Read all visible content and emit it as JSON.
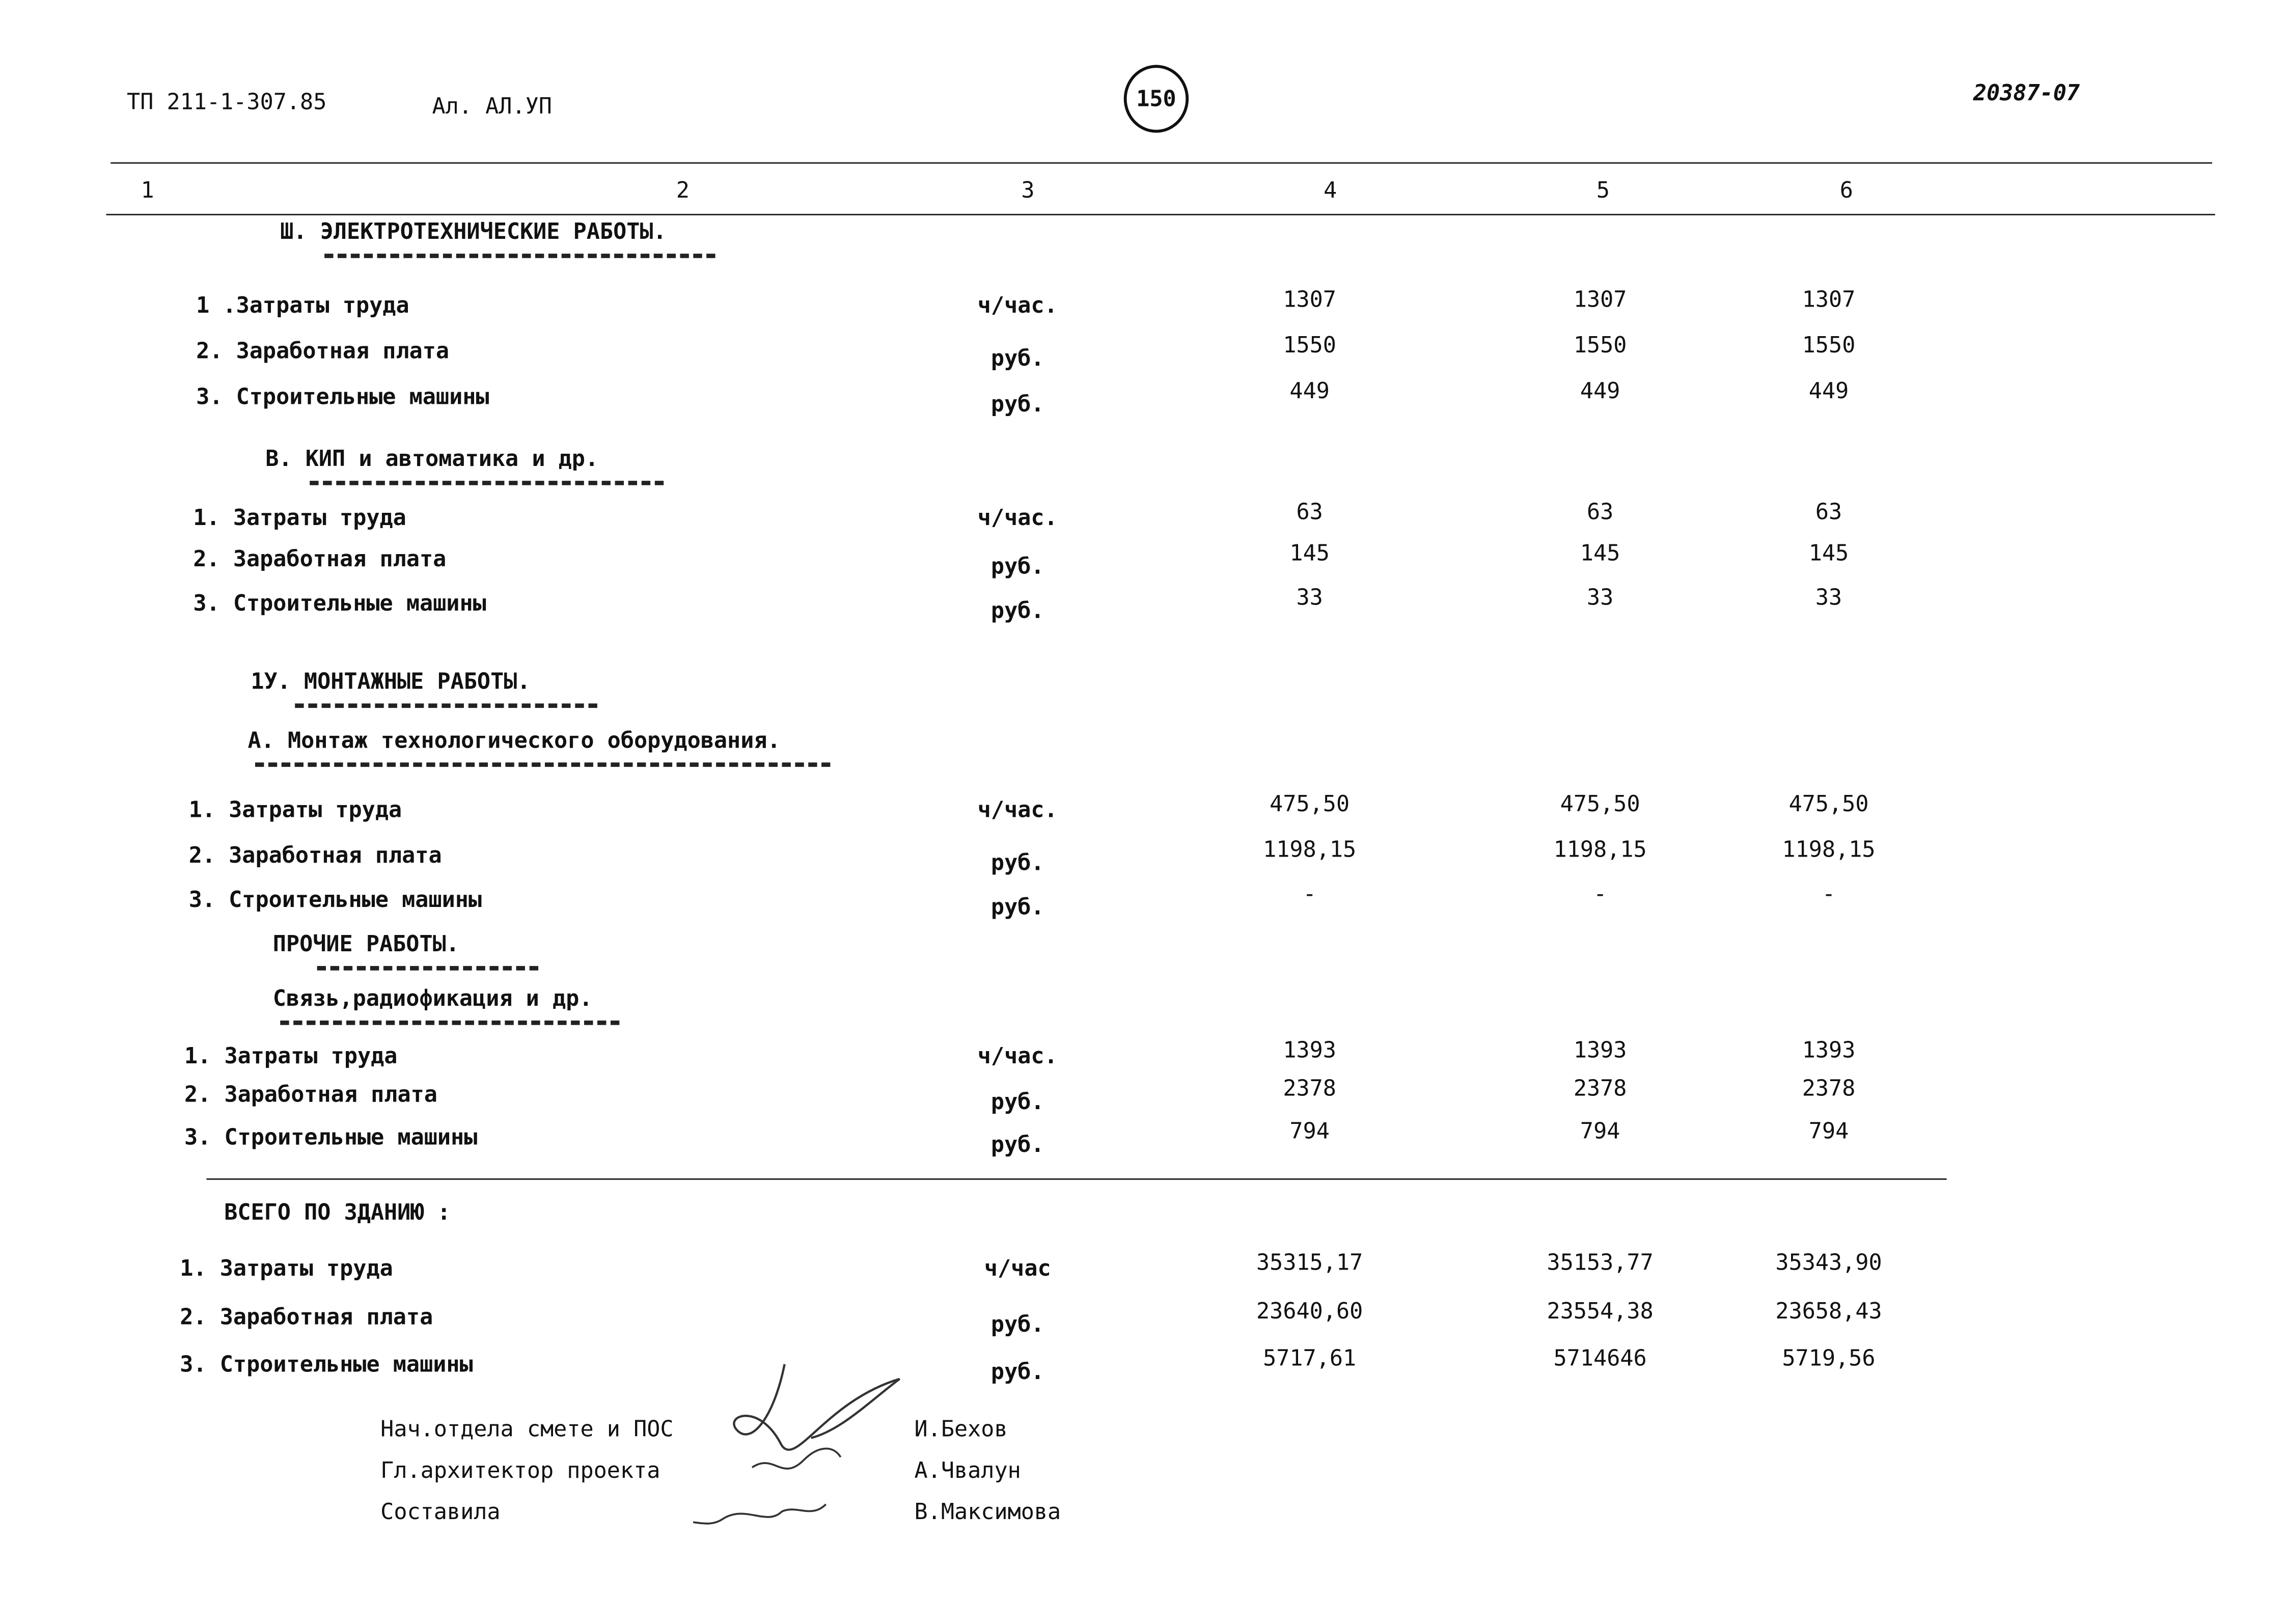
{
  "header": {
    "doc_code": "ТП 211-1-307.85",
    "album": "Ал. АЛ.УП",
    "page_number": "150",
    "inventory_number": "20387-07"
  },
  "columns": [
    "1",
    "2",
    "3",
    "4",
    "5",
    "6"
  ],
  "sections": [
    {
      "title": "Ш. ЭЛЕКТРОТЕХНИЧЕСКИЕ РАБОТЫ.",
      "rows": [
        {
          "label": "1 .Затраты труда",
          "unit": "ч/час.",
          "values": [
            "1307",
            "1307",
            "1307"
          ]
        },
        {
          "label": "2. Заработная плата",
          "unit": "руб.",
          "values": [
            "1550",
            "1550",
            "1550"
          ]
        },
        {
          "label": "3. Строительные машины",
          "unit": "руб.",
          "values": [
            "449",
            "449",
            "449"
          ]
        }
      ]
    },
    {
      "title": "В. КИП и автоматика и др.",
      "rows": [
        {
          "label": "1. Затраты труда",
          "unit": "ч/час.",
          "values": [
            "63",
            "63",
            "63"
          ]
        },
        {
          "label": "2. Заработная плата",
          "unit": "руб.",
          "values": [
            "145",
            "145",
            "145"
          ]
        },
        {
          "label": "3. Строительные машины",
          "unit": "руб.",
          "values": [
            "33",
            "33",
            "33"
          ]
        }
      ]
    },
    {
      "title": "1У. МОНТАЖНЫЕ РАБОТЫ.",
      "subtitle": "А. Монтаж технологического оборудования.",
      "rows": [
        {
          "label": "1. Затраты труда",
          "unit": "ч/час.",
          "values": [
            "475,50",
            "475,50",
            "475,50"
          ]
        },
        {
          "label": "2. Заработная плата",
          "unit": "руб.",
          "values": [
            "1198,15",
            "1198,15",
            "1198,15"
          ]
        },
        {
          "label": "3. Строительные машины",
          "unit": "руб.",
          "values": [
            "-",
            "-",
            "-"
          ]
        }
      ]
    },
    {
      "title": "ПРОЧИЕ РАБОТЫ.",
      "subtitle": "Связь,радиофикация и др.",
      "rows": [
        {
          "label": "1. Затраты труда",
          "unit": "ч/час.",
          "values": [
            "1393",
            "1393",
            "1393"
          ]
        },
        {
          "label": "2. Заработная плата",
          "unit": "руб.",
          "values": [
            "2378",
            "2378",
            "2378"
          ]
        },
        {
          "label": "3. Строительные машины",
          "unit": "руб.",
          "values": [
            "794",
            "794",
            "794"
          ]
        }
      ]
    },
    {
      "title": "ВСЕГО ПО ЗДАНИЮ :",
      "rows": [
        {
          "label": "1. Затраты труда",
          "unit": "ч/час",
          "values": [
            "35315,17",
            "35153,77",
            "35343,90"
          ]
        },
        {
          "label": "2. Заработная плата",
          "unit": "руб.",
          "values": [
            "23640,60",
            "23554,38",
            "23658,43"
          ]
        },
        {
          "label": "3. Строительные машины",
          "unit": "руб.",
          "values": [
            "5717,61",
            "5714646",
            "5719,56"
          ]
        }
      ]
    }
  ],
  "signatures": [
    {
      "role": "Нач.отдела смете и ПОС",
      "name": "И.Бехов"
    },
    {
      "role": "Гл.архитектор проекта",
      "name": "А.Чвалун"
    },
    {
      "role": "Составила",
      "name": "В.Максимова"
    }
  ]
}
